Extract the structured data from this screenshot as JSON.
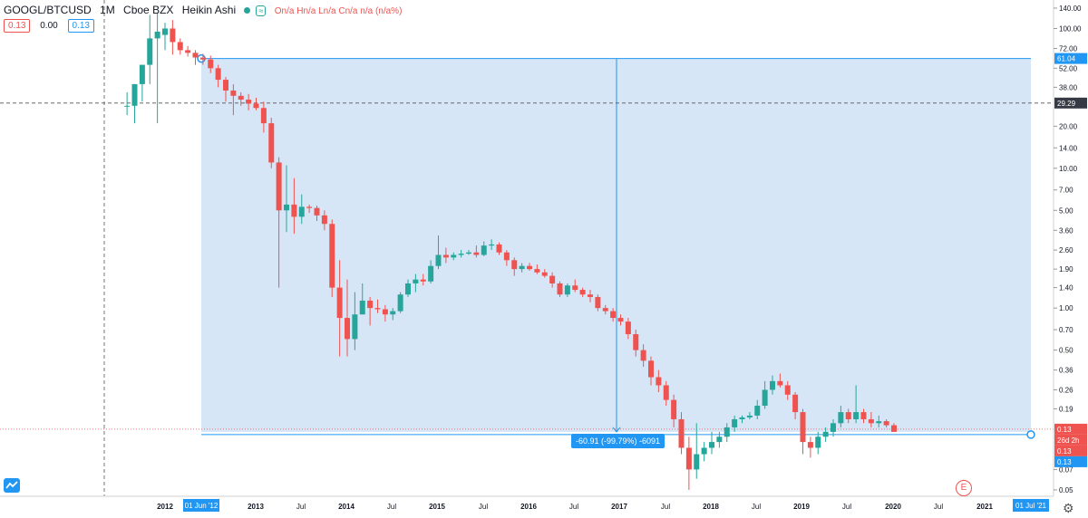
{
  "header": {
    "symbol": "GOOGL/BTCUSD",
    "interval": "1M",
    "exchange": "Cboe BZX",
    "style": "Heikin Ashi",
    "eye_icon": "eye-toggle-icon",
    "ohlc_text": "On/a Hn/a Ln/a Cn/a n/a (n/a%)"
  },
  "quote": {
    "sell": "0.13",
    "spread": "0.00",
    "buy": "0.13"
  },
  "measure_label": "-60.91 (-99.79%) -6091",
  "event_marker": "E",
  "colors": {
    "up": "#26a69a",
    "down": "#ef5350",
    "range_fill": "#cfe2f5",
    "range_line": "#2196f3"
  },
  "chart_data": {
    "type": "candlestick",
    "style": "heikin-ashi",
    "y_scale": "log",
    "ylim": [
      0.045,
      160
    ],
    "y_ticks": [
      "140.00",
      "100.00",
      "72.00",
      "52.00",
      "38.00",
      "29.29",
      "20.00",
      "14.00",
      "10.00",
      "7.00",
      "5.00",
      "3.60",
      "2.60",
      "1.90",
      "1.40",
      "1.00",
      "0.70",
      "0.50",
      "0.36",
      "0.26",
      "0.19",
      "0.13",
      "0.07",
      "0.05"
    ],
    "y_tick_values": [
      140,
      100,
      72,
      52,
      38,
      null,
      20,
      14,
      10,
      7,
      5,
      3.6,
      2.6,
      1.9,
      1.4,
      1.0,
      0.7,
      0.5,
      0.36,
      0.26,
      0.19,
      null,
      0.07,
      0.05
    ],
    "x_ticks": [
      "2012",
      "01 Jun '12",
      "2013",
      "Jul",
      "2014",
      "Jul",
      "2015",
      "Jul",
      "2016",
      "Jul",
      "2017",
      "Jul",
      "2018",
      "Jul",
      "2019",
      "Jul",
      "2020",
      "Jul",
      "2021",
      "01 Jul '21"
    ],
    "price_labels": {
      "range_top": "61.04",
      "crosshair": "29.29",
      "last": "0.13",
      "countdown": "26d 2h",
      "bid": "0.13",
      "ask": "0.13"
    },
    "crosshair_value": 29.29,
    "range_top_value": 61.04,
    "range_bottom_value": 0.13,
    "candles": [
      {
        "date": "2011-08",
        "o": 28,
        "h": 35,
        "l": 24,
        "c": 28
      },
      {
        "date": "2011-09",
        "o": 28,
        "h": 40,
        "l": 21,
        "c": 40
      },
      {
        "date": "2011-10",
        "o": 40,
        "h": 55,
        "l": 30,
        "c": 55
      },
      {
        "date": "2011-11",
        "o": 55,
        "h": 125,
        "l": 40,
        "c": 85
      },
      {
        "date": "2011-12",
        "o": 85,
        "h": 130,
        "l": 21,
        "c": 95
      },
      {
        "date": "2012-01",
        "o": 90,
        "h": 110,
        "l": 70,
        "c": 100
      },
      {
        "date": "2012-02",
        "o": 100,
        "h": 115,
        "l": 65,
        "c": 80
      },
      {
        "date": "2012-03",
        "o": 80,
        "h": 85,
        "l": 65,
        "c": 70
      },
      {
        "date": "2012-04",
        "o": 70,
        "h": 75,
        "l": 63,
        "c": 67
      },
      {
        "date": "2012-05",
        "o": 67,
        "h": 70,
        "l": 55,
        "c": 62
      },
      {
        "date": "2012-06",
        "o": 62,
        "h": 66,
        "l": 55,
        "c": 60
      },
      {
        "date": "2012-07",
        "o": 60,
        "h": 64,
        "l": 48,
        "c": 52
      },
      {
        "date": "2012-08",
        "o": 52,
        "h": 55,
        "l": 38,
        "c": 43
      },
      {
        "date": "2012-09",
        "o": 43,
        "h": 45,
        "l": 30,
        "c": 36
      },
      {
        "date": "2012-10",
        "o": 36,
        "h": 40,
        "l": 24,
        "c": 33
      },
      {
        "date": "2012-11",
        "o": 33,
        "h": 35,
        "l": 28,
        "c": 31
      },
      {
        "date": "2012-12",
        "o": 31,
        "h": 34,
        "l": 26,
        "c": 29
      },
      {
        "date": "2013-01",
        "o": 29,
        "h": 32,
        "l": 26,
        "c": 27
      },
      {
        "date": "2013-02",
        "o": 27,
        "h": 30,
        "l": 18,
        "c": 21
      },
      {
        "date": "2013-03",
        "o": 21,
        "h": 23,
        "l": 10,
        "c": 11
      },
      {
        "date": "2013-04",
        "o": 11,
        "h": 12,
        "l": 1.4,
        "c": 5
      },
      {
        "date": "2013-05",
        "o": 5,
        "h": 10.5,
        "l": 3.5,
        "c": 5.5
      },
      {
        "date": "2013-06",
        "o": 5.5,
        "h": 8.5,
        "l": 3.4,
        "c": 4.5
      },
      {
        "date": "2013-07",
        "o": 4.5,
        "h": 6.5,
        "l": 4,
        "c": 5.3
      },
      {
        "date": "2013-08",
        "o": 5.3,
        "h": 5.5,
        "l": 4.8,
        "c": 5.2
      },
      {
        "date": "2013-09",
        "o": 5.2,
        "h": 5.4,
        "l": 4.2,
        "c": 4.6
      },
      {
        "date": "2013-10",
        "o": 4.6,
        "h": 5,
        "l": 3.6,
        "c": 4
      },
      {
        "date": "2013-11",
        "o": 4,
        "h": 4.3,
        "l": 1.2,
        "c": 1.4
      },
      {
        "date": "2013-12",
        "o": 1.4,
        "h": 2.2,
        "l": 0.45,
        "c": 0.85
      },
      {
        "date": "2014-01",
        "o": 0.85,
        "h": 1.6,
        "l": 0.45,
        "c": 0.6
      },
      {
        "date": "2014-02",
        "o": 0.6,
        "h": 1.3,
        "l": 0.5,
        "c": 0.9
      },
      {
        "date": "2014-03",
        "o": 0.9,
        "h": 1.5,
        "l": 0.9,
        "c": 1.13
      },
      {
        "date": "2014-04",
        "o": 1.13,
        "h": 1.2,
        "l": 0.75,
        "c": 1.0
      },
      {
        "date": "2014-05",
        "o": 1.0,
        "h": 1.15,
        "l": 0.92,
        "c": 0.98
      },
      {
        "date": "2014-06",
        "o": 0.98,
        "h": 1.05,
        "l": 0.8,
        "c": 0.9
      },
      {
        "date": "2014-07",
        "o": 0.9,
        "h": 1.0,
        "l": 0.82,
        "c": 0.95
      },
      {
        "date": "2014-08",
        "o": 0.95,
        "h": 1.3,
        "l": 0.92,
        "c": 1.25
      },
      {
        "date": "2014-09",
        "o": 1.25,
        "h": 1.6,
        "l": 1.2,
        "c": 1.5
      },
      {
        "date": "2014-10",
        "o": 1.5,
        "h": 1.75,
        "l": 1.3,
        "c": 1.6
      },
      {
        "date": "2014-11",
        "o": 1.6,
        "h": 1.75,
        "l": 1.45,
        "c": 1.55
      },
      {
        "date": "2014-12",
        "o": 1.55,
        "h": 2.2,
        "l": 1.5,
        "c": 2.0
      },
      {
        "date": "2015-01",
        "o": 2.0,
        "h": 3.3,
        "l": 1.9,
        "c": 2.4
      },
      {
        "date": "2015-02",
        "o": 2.4,
        "h": 2.7,
        "l": 2.1,
        "c": 2.3
      },
      {
        "date": "2015-03",
        "o": 2.3,
        "h": 2.5,
        "l": 2.2,
        "c": 2.4
      },
      {
        "date": "2015-04",
        "o": 2.4,
        "h": 2.6,
        "l": 2.3,
        "c": 2.45
      },
      {
        "date": "2015-05",
        "o": 2.45,
        "h": 2.6,
        "l": 2.4,
        "c": 2.5
      },
      {
        "date": "2015-06",
        "o": 2.5,
        "h": 2.8,
        "l": 2.3,
        "c": 2.4
      },
      {
        "date": "2015-07",
        "o": 2.4,
        "h": 3.0,
        "l": 2.35,
        "c": 2.8
      },
      {
        "date": "2015-08",
        "o": 2.8,
        "h": 3.1,
        "l": 2.6,
        "c": 2.85
      },
      {
        "date": "2015-09",
        "o": 2.85,
        "h": 2.95,
        "l": 2.4,
        "c": 2.5
      },
      {
        "date": "2015-10",
        "o": 2.5,
        "h": 2.6,
        "l": 2.0,
        "c": 2.2
      },
      {
        "date": "2015-11",
        "o": 2.2,
        "h": 2.3,
        "l": 1.7,
        "c": 1.9
      },
      {
        "date": "2015-12",
        "o": 1.9,
        "h": 2.1,
        "l": 1.8,
        "c": 2.0
      },
      {
        "date": "2016-01",
        "o": 2.0,
        "h": 2.1,
        "l": 1.85,
        "c": 1.9
      },
      {
        "date": "2016-02",
        "o": 1.9,
        "h": 2.05,
        "l": 1.75,
        "c": 1.8
      },
      {
        "date": "2016-03",
        "o": 1.8,
        "h": 1.9,
        "l": 1.65,
        "c": 1.7
      },
      {
        "date": "2016-04",
        "o": 1.7,
        "h": 1.8,
        "l": 1.4,
        "c": 1.5
      },
      {
        "date": "2016-05",
        "o": 1.5,
        "h": 1.55,
        "l": 1.2,
        "c": 1.25
      },
      {
        "date": "2016-06",
        "o": 1.25,
        "h": 1.5,
        "l": 1.2,
        "c": 1.45
      },
      {
        "date": "2016-07",
        "o": 1.45,
        "h": 1.6,
        "l": 1.3,
        "c": 1.35
      },
      {
        "date": "2016-08",
        "o": 1.35,
        "h": 1.4,
        "l": 1.2,
        "c": 1.25
      },
      {
        "date": "2016-09",
        "o": 1.25,
        "h": 1.35,
        "l": 1.1,
        "c": 1.2
      },
      {
        "date": "2016-10",
        "o": 1.2,
        "h": 1.25,
        "l": 0.95,
        "c": 1.0
      },
      {
        "date": "2016-11",
        "o": 1.0,
        "h": 1.05,
        "l": 0.9,
        "c": 0.95
      },
      {
        "date": "2016-12",
        "o": 0.95,
        "h": 1.0,
        "l": 0.8,
        "c": 0.85
      },
      {
        "date": "2017-01",
        "o": 0.85,
        "h": 0.9,
        "l": 0.75,
        "c": 0.8
      },
      {
        "date": "2017-02",
        "o": 0.8,
        "h": 0.85,
        "l": 0.6,
        "c": 0.65
      },
      {
        "date": "2017-03",
        "o": 0.65,
        "h": 0.7,
        "l": 0.45,
        "c": 0.5
      },
      {
        "date": "2017-04",
        "o": 0.5,
        "h": 0.55,
        "l": 0.38,
        "c": 0.42
      },
      {
        "date": "2017-05",
        "o": 0.42,
        "h": 0.45,
        "l": 0.28,
        "c": 0.32
      },
      {
        "date": "2017-06",
        "o": 0.32,
        "h": 0.36,
        "l": 0.25,
        "c": 0.28
      },
      {
        "date": "2017-07",
        "o": 0.28,
        "h": 0.3,
        "l": 0.2,
        "c": 0.22
      },
      {
        "date": "2017-08",
        "o": 0.22,
        "h": 0.24,
        "l": 0.14,
        "c": 0.16
      },
      {
        "date": "2017-09",
        "o": 0.16,
        "h": 0.18,
        "l": 0.09,
        "c": 0.1
      },
      {
        "date": "2017-10",
        "o": 0.1,
        "h": 0.12,
        "l": 0.05,
        "c": 0.07
      },
      {
        "date": "2017-11",
        "o": 0.07,
        "h": 0.15,
        "l": 0.06,
        "c": 0.09
      },
      {
        "date": "2017-12",
        "o": 0.09,
        "h": 0.11,
        "l": 0.08,
        "c": 0.1
      },
      {
        "date": "2018-01",
        "o": 0.1,
        "h": 0.13,
        "l": 0.09,
        "c": 0.11
      },
      {
        "date": "2018-02",
        "o": 0.11,
        "h": 0.13,
        "l": 0.1,
        "c": 0.12
      },
      {
        "date": "2018-03",
        "o": 0.12,
        "h": 0.15,
        "l": 0.11,
        "c": 0.14
      },
      {
        "date": "2018-04",
        "o": 0.14,
        "h": 0.17,
        "l": 0.13,
        "c": 0.16
      },
      {
        "date": "2018-05",
        "o": 0.16,
        "h": 0.17,
        "l": 0.15,
        "c": 0.165
      },
      {
        "date": "2018-06",
        "o": 0.165,
        "h": 0.18,
        "l": 0.16,
        "c": 0.17
      },
      {
        "date": "2018-07",
        "o": 0.17,
        "h": 0.22,
        "l": 0.16,
        "c": 0.2
      },
      {
        "date": "2018-08",
        "o": 0.2,
        "h": 0.3,
        "l": 0.19,
        "c": 0.26
      },
      {
        "date": "2018-09",
        "o": 0.26,
        "h": 0.33,
        "l": 0.24,
        "c": 0.3
      },
      {
        "date": "2018-10",
        "o": 0.3,
        "h": 0.34,
        "l": 0.27,
        "c": 0.28
      },
      {
        "date": "2018-11",
        "o": 0.28,
        "h": 0.3,
        "l": 0.22,
        "c": 0.24
      },
      {
        "date": "2018-12",
        "o": 0.24,
        "h": 0.25,
        "l": 0.16,
        "c": 0.18
      },
      {
        "date": "2019-01",
        "o": 0.18,
        "h": 0.19,
        "l": 0.09,
        "c": 0.11
      },
      {
        "date": "2019-02",
        "o": 0.11,
        "h": 0.12,
        "l": 0.085,
        "c": 0.1
      },
      {
        "date": "2019-03",
        "o": 0.1,
        "h": 0.13,
        "l": 0.09,
        "c": 0.12
      },
      {
        "date": "2019-04",
        "o": 0.12,
        "h": 0.14,
        "l": 0.11,
        "c": 0.13
      },
      {
        "date": "2019-05",
        "o": 0.13,
        "h": 0.16,
        "l": 0.12,
        "c": 0.15
      },
      {
        "date": "2019-06",
        "o": 0.15,
        "h": 0.2,
        "l": 0.14,
        "c": 0.18
      },
      {
        "date": "2019-07",
        "o": 0.18,
        "h": 0.19,
        "l": 0.15,
        "c": 0.16
      },
      {
        "date": "2019-08",
        "o": 0.16,
        "h": 0.28,
        "l": 0.15,
        "c": 0.18
      },
      {
        "date": "2019-09",
        "o": 0.18,
        "h": 0.19,
        "l": 0.15,
        "c": 0.16
      },
      {
        "date": "2019-10",
        "o": 0.16,
        "h": 0.18,
        "l": 0.14,
        "c": 0.15
      },
      {
        "date": "2019-11",
        "o": 0.15,
        "h": 0.17,
        "l": 0.14,
        "c": 0.155
      },
      {
        "date": "2019-12",
        "o": 0.155,
        "h": 0.16,
        "l": 0.14,
        "c": 0.145
      },
      {
        "date": "2020-01",
        "o": 0.145,
        "h": 0.15,
        "l": 0.13,
        "c": 0.13
      }
    ]
  }
}
